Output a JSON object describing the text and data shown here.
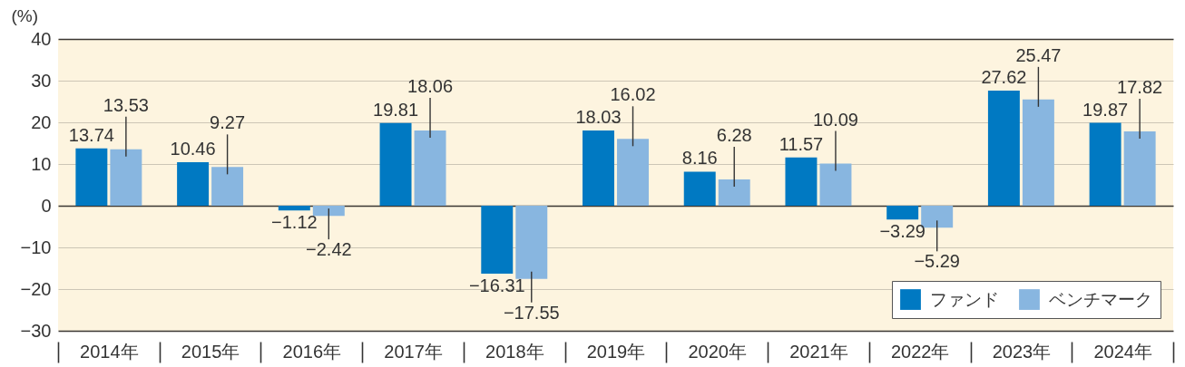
{
  "chart_data": {
    "type": "bar",
    "ylabel": "(%)",
    "categories": [
      "2014年",
      "2015年",
      "2016年",
      "2017年",
      "2018年",
      "2019年",
      "2020年",
      "2021年",
      "2022年",
      "2023年",
      "2024年"
    ],
    "series": [
      {
        "name": "ファンド",
        "color": "#0079c2",
        "values": [
          13.74,
          10.46,
          -1.12,
          19.81,
          -16.31,
          18.03,
          8.16,
          11.57,
          -3.29,
          27.62,
          19.87
        ]
      },
      {
        "name": "ベンチマーク",
        "color": "#88b6e0",
        "values": [
          13.53,
          9.27,
          -2.42,
          18.06,
          -17.55,
          16.02,
          6.28,
          10.09,
          -5.29,
          25.47,
          17.82
        ]
      }
    ],
    "ylim": [
      -30,
      40
    ],
    "yticks": [
      -30,
      -20,
      -10,
      0,
      10,
      20,
      30,
      40
    ],
    "grid": "y",
    "legend": "bottom right",
    "data_labels": true
  }
}
